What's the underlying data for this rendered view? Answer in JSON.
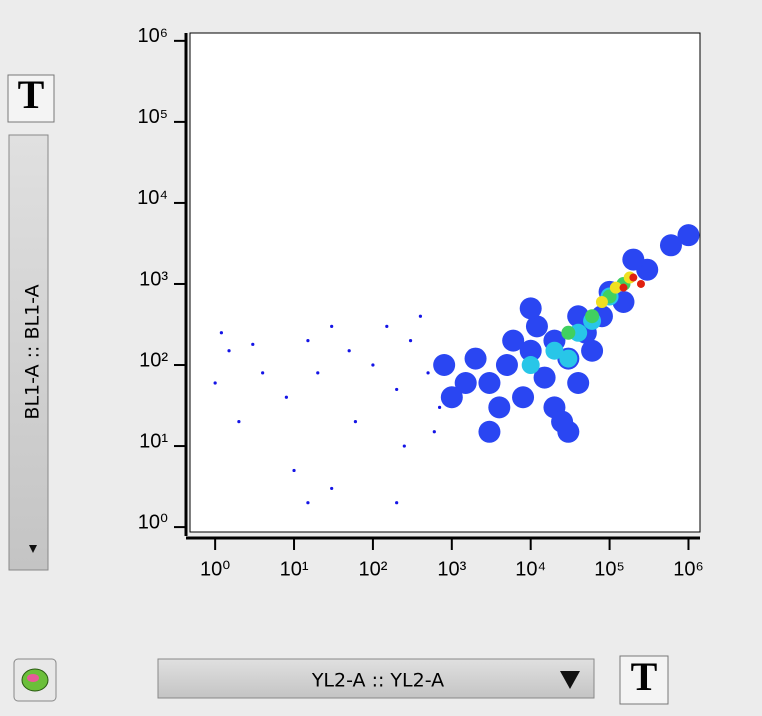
{
  "ui": {
    "y_param": "BL1-A :: BL1-A",
    "x_param": "YL2-A :: YL2-A",
    "buttons": [
      "T",
      "T"
    ]
  },
  "chart_data": {
    "type": "scatter",
    "xscale": "log",
    "yscale": "log",
    "xlim": [
      0.48,
      1400000
    ],
    "ylim": [
      0.87,
      1250000
    ],
    "xticks": [
      {
        "value": 1,
        "label": "10⁰"
      },
      {
        "value": 10,
        "label": "10¹"
      },
      {
        "value": 100,
        "label": "10²"
      },
      {
        "value": 1000,
        "label": "10³"
      },
      {
        "value": 10000,
        "label": "10⁴"
      },
      {
        "value": 100000,
        "label": "10⁵"
      },
      {
        "value": 1000000,
        "label": "10⁶"
      }
    ],
    "yticks": [
      {
        "value": 1,
        "label": "10⁰"
      },
      {
        "value": 10,
        "label": "10¹"
      },
      {
        "value": 100,
        "label": "10²"
      },
      {
        "value": 1000,
        "label": "10³"
      },
      {
        "value": 10000,
        "label": "10⁴"
      },
      {
        "value": 100000,
        "label": "10⁵"
      },
      {
        "value": 1000000,
        "label": "10⁶"
      }
    ],
    "series": [
      {
        "color": "#1414e6",
        "x": [
          1.5,
          2,
          1,
          4,
          8,
          15,
          20,
          30,
          50,
          60,
          100,
          150,
          200,
          300,
          500,
          400,
          700,
          10,
          30,
          200,
          15,
          1.2,
          3,
          250,
          600
        ],
        "values": [
          150,
          20,
          60,
          80,
          40,
          200,
          80,
          300,
          150,
          20,
          100,
          300,
          50,
          200,
          80,
          400,
          30,
          5,
          3,
          2,
          2,
          250,
          180,
          10,
          15
        ]
      },
      {
        "color": "#2a46f2",
        "x": [
          3000,
          5000,
          8000,
          10000,
          15000,
          20000,
          30000,
          40000,
          50000,
          6000,
          2000,
          25000,
          12000,
          80000,
          150000,
          300000,
          600000,
          1000000,
          60000,
          4000,
          1500,
          100000,
          200000,
          40000,
          20000,
          800,
          1000,
          10000,
          3000,
          30000
        ],
        "values": [
          60,
          100,
          40,
          150,
          70,
          30,
          120,
          60,
          250,
          200,
          120,
          20,
          300,
          400,
          600,
          1500,
          3000,
          4000,
          150,
          30,
          60,
          800,
          2000,
          400,
          200,
          100,
          40,
          500,
          15,
          15
        ]
      },
      {
        "color": "#28c6e8",
        "x": [
          20000,
          40000,
          60000,
          10000,
          30000,
          100000
        ],
        "values": [
          150,
          250,
          350,
          100,
          120,
          700
        ]
      },
      {
        "color": "#40d060",
        "x": [
          30000,
          60000,
          100000,
          150000
        ],
        "values": [
          250,
          400,
          700,
          1000
        ]
      },
      {
        "color": "#f0e020",
        "x": [
          80000,
          120000,
          180000
        ],
        "values": [
          600,
          900,
          1200
        ]
      },
      {
        "color": "#e02010",
        "x": [
          150000,
          200000,
          250000
        ],
        "values": [
          900,
          1200,
          1000
        ]
      }
    ]
  }
}
